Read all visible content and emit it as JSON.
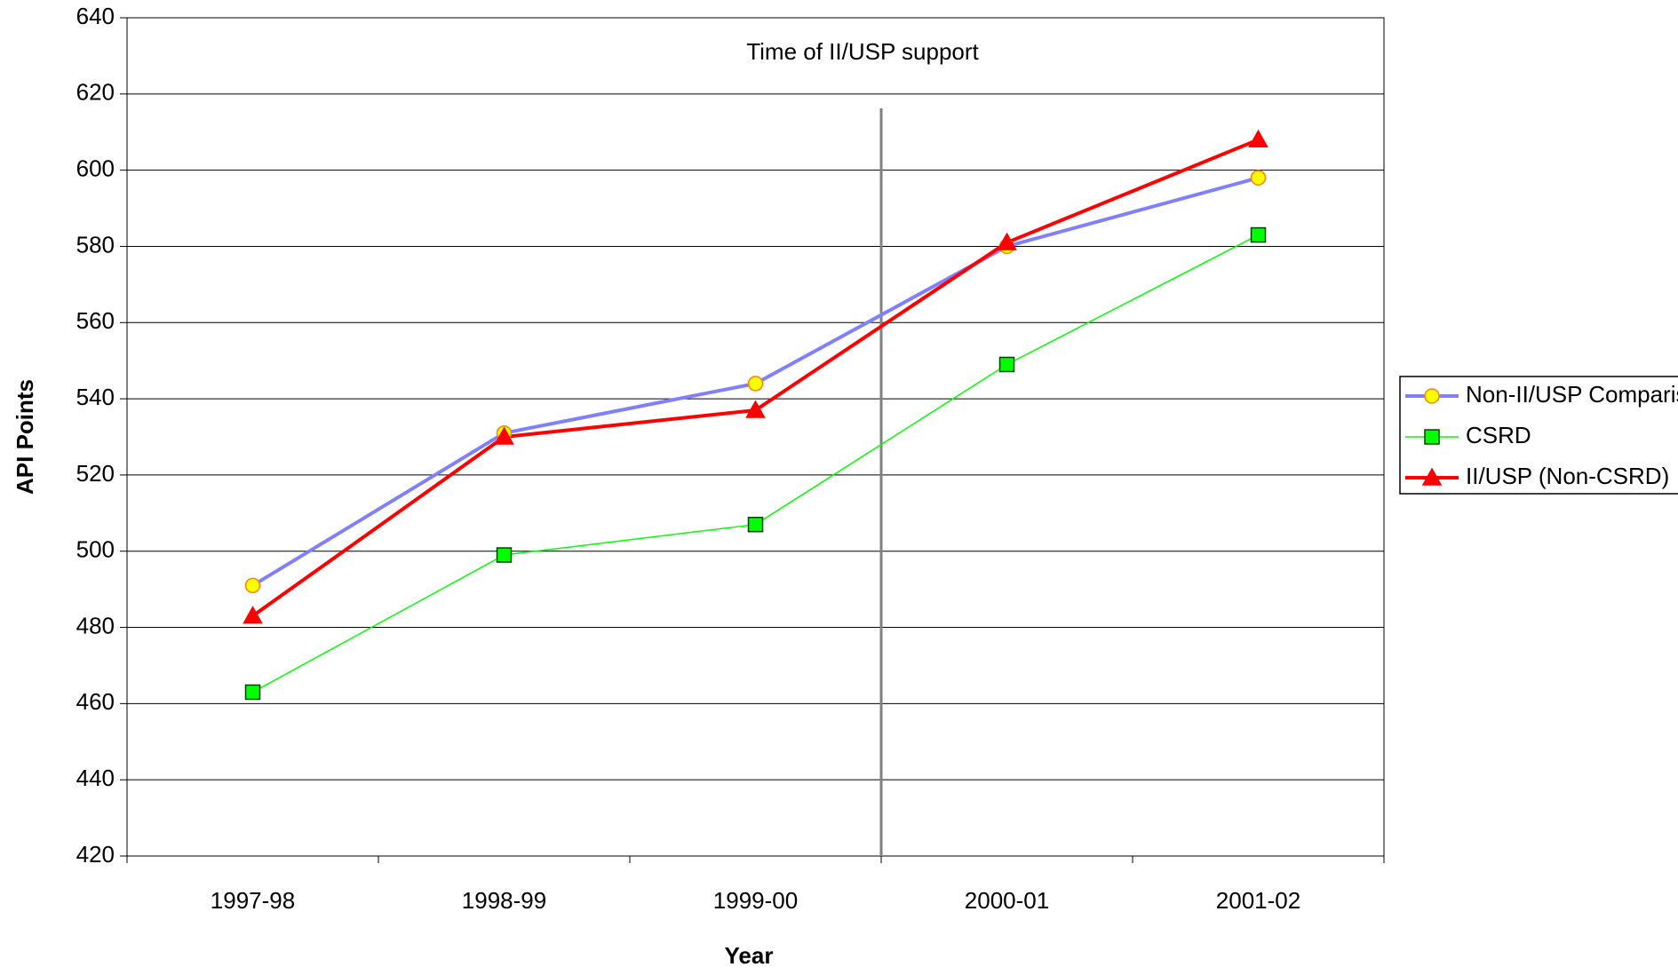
{
  "chart_data": {
    "type": "line",
    "annotation": "Time of II/USP support",
    "xlabel": "Year",
    "ylabel": "API Points",
    "categories": [
      "1997-98",
      "1998-99",
      "1999-00",
      "2000-01",
      "2001-02"
    ],
    "series": [
      {
        "name": "Non-II/USP Comparison",
        "color": "#8080ff",
        "marker": "circle",
        "marker_fill": "#ffff00",
        "marker_stroke": "#ff8000",
        "values": [
          491,
          531,
          544,
          580,
          598
        ]
      },
      {
        "name": "CSRD",
        "color": "#00ff00",
        "marker": "square",
        "marker_fill": "#00ff00",
        "marker_stroke": "#006000",
        "values": [
          463,
          499,
          507,
          549,
          583
        ]
      },
      {
        "name": "II/USP (Non-CSRD)",
        "color": "#ff0000",
        "marker": "triangle",
        "marker_fill": "#ff0000",
        "marker_stroke": "#ff0000",
        "values": [
          483,
          530,
          537,
          581,
          608
        ]
      }
    ],
    "ylim": [
      420,
      640
    ],
    "yticks": [
      420,
      440,
      460,
      480,
      500,
      520,
      540,
      560,
      580,
      600,
      620,
      640
    ],
    "grid": true
  }
}
